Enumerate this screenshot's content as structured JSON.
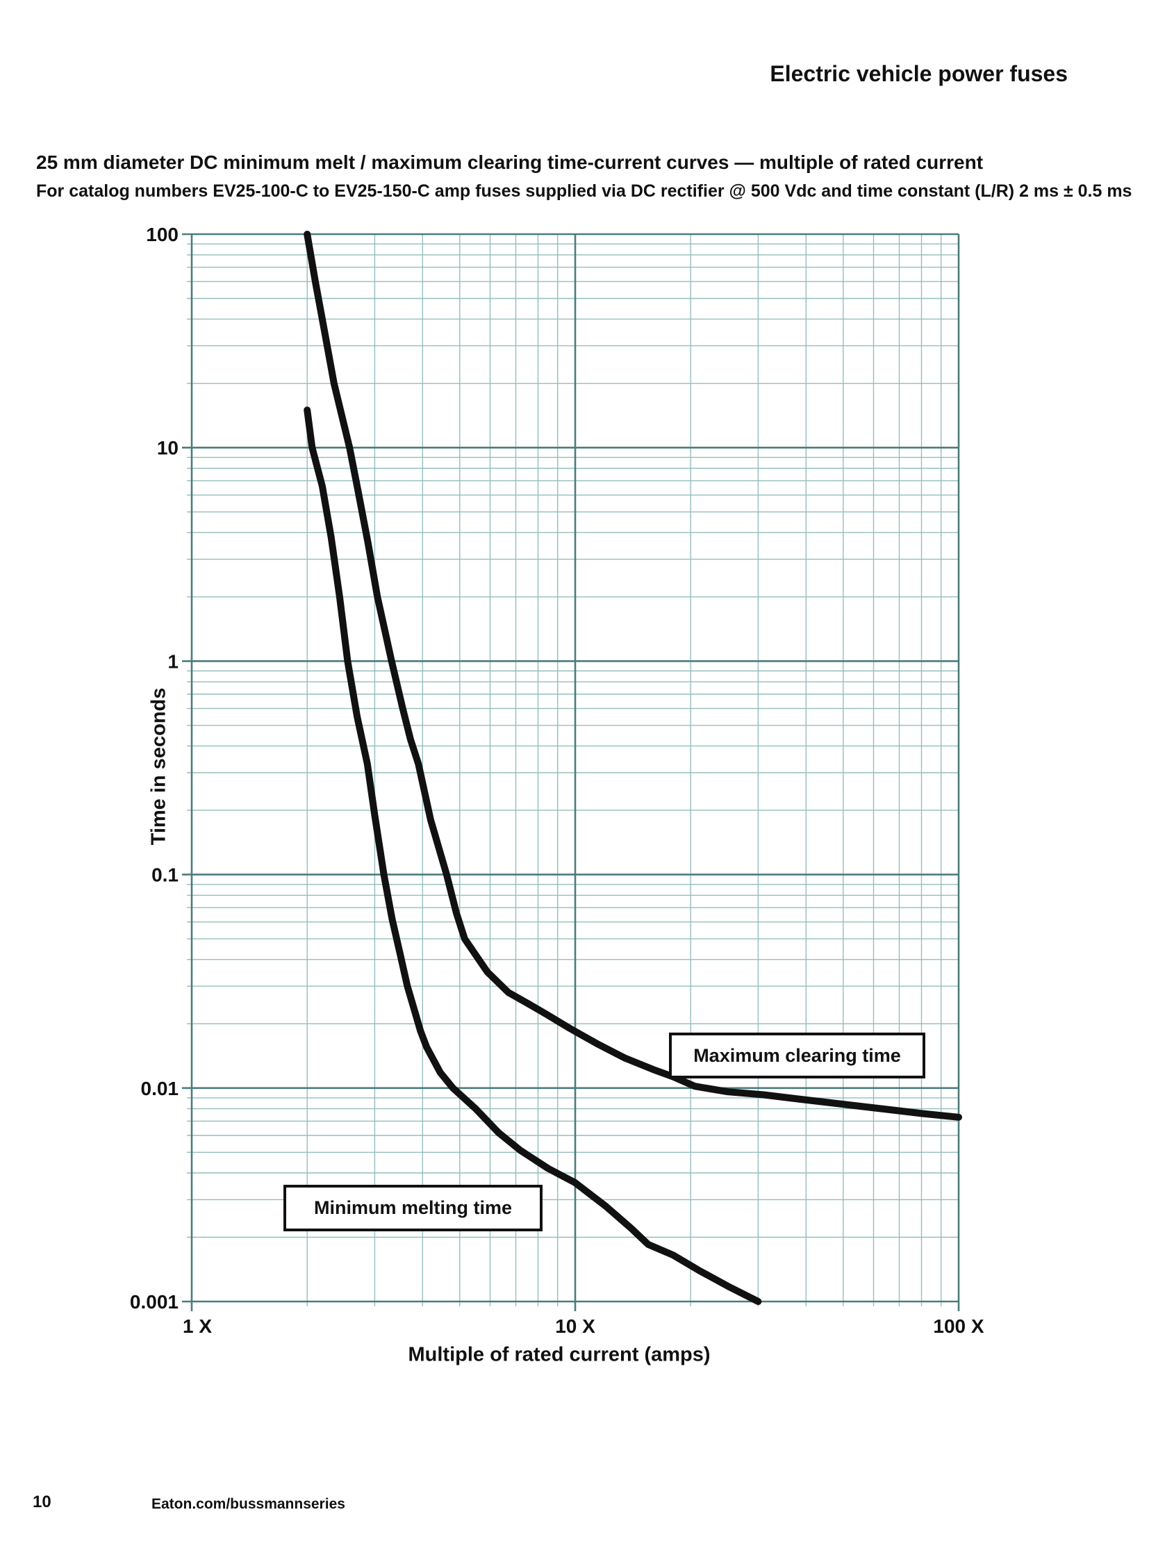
{
  "page": {
    "header": "Electric vehicle power fuses",
    "title": "25 mm diameter DC minimum melt / maximum clearing time-current curves — multiple of rated current",
    "subtitle": "For catalog numbers EV25-100-C to EV25-150-C amp fuses supplied via DC rectifier @ 500 Vdc and time constant (L/R) 2 ms ± 0.5 ms",
    "footer": {
      "page_number": "10",
      "url": "Eaton.com/bussmannseries"
    }
  },
  "chart_data": {
    "type": "line",
    "title": "",
    "xlabel": "Multiple of rated current (amps)",
    "ylabel": "Time in seconds",
    "x_scale": "log",
    "y_scale": "log",
    "xlim": [
      1,
      100
    ],
    "ylim": [
      0.001,
      100
    ],
    "grid": true,
    "x_unit": "multiple of rated current",
    "y_unit": "seconds",
    "x_ticks": [
      {
        "value": 1,
        "label": "1 X"
      },
      {
        "value": 10,
        "label": "10 X"
      },
      {
        "value": 100,
        "label": "100 X"
      }
    ],
    "y_ticks": [
      {
        "value": 100,
        "label": "100"
      },
      {
        "value": 10,
        "label": "10"
      },
      {
        "value": 1,
        "label": "1"
      },
      {
        "value": 0.1,
        "label": "0.1"
      },
      {
        "value": 0.01,
        "label": "0.01"
      },
      {
        "value": 0.001,
        "label": "0.001"
      }
    ],
    "colors": {
      "curve": "#111111",
      "grid_major": "#4c7b7b",
      "grid_minor": "#94bdbd",
      "text": "#111111",
      "callout_bg": "#ffffff"
    },
    "series": [
      {
        "name": "Minimum melting time",
        "points": [
          [
            2.0,
            15
          ],
          [
            2.06,
            10
          ],
          [
            2.19,
            6.6
          ],
          [
            2.31,
            3.8
          ],
          [
            2.43,
            2.0
          ],
          [
            2.55,
            1.0
          ],
          [
            2.7,
            0.55
          ],
          [
            2.87,
            0.33
          ],
          [
            3.0,
            0.19
          ],
          [
            3.17,
            0.1
          ],
          [
            3.33,
            0.062
          ],
          [
            3.5,
            0.042
          ],
          [
            3.65,
            0.03
          ],
          [
            3.8,
            0.0235
          ],
          [
            3.95,
            0.0185
          ],
          [
            4.1,
            0.0155
          ],
          [
            4.45,
            0.0118
          ],
          [
            4.8,
            0.01
          ],
          [
            5.5,
            0.008
          ],
          [
            6.3,
            0.0062
          ],
          [
            7.2,
            0.0051
          ],
          [
            8.5,
            0.0042
          ],
          [
            10.0,
            0.0036
          ],
          [
            12.0,
            0.0028
          ],
          [
            14.0,
            0.0022
          ],
          [
            15.5,
            0.00185
          ],
          [
            18.0,
            0.00165
          ],
          [
            21.0,
            0.0014
          ],
          [
            25.0,
            0.00118
          ],
          [
            30.0,
            0.001
          ]
        ]
      },
      {
        "name": "Maximum clearing time",
        "points": [
          [
            2.0,
            100
          ],
          [
            2.1,
            60
          ],
          [
            2.22,
            35
          ],
          [
            2.35,
            20
          ],
          [
            2.58,
            10
          ],
          [
            2.7,
            6.6
          ],
          [
            2.88,
            3.6
          ],
          [
            3.05,
            2.0
          ],
          [
            3.32,
            1.0
          ],
          [
            3.55,
            0.6
          ],
          [
            3.72,
            0.43
          ],
          [
            3.9,
            0.33
          ],
          [
            4.2,
            0.18
          ],
          [
            4.62,
            0.1
          ],
          [
            4.9,
            0.066
          ],
          [
            5.15,
            0.05
          ],
          [
            5.9,
            0.035
          ],
          [
            6.7,
            0.028
          ],
          [
            7.5,
            0.025
          ],
          [
            8.4,
            0.0222
          ],
          [
            9.7,
            0.019
          ],
          [
            11.5,
            0.016
          ],
          [
            13.5,
            0.0138
          ],
          [
            16.0,
            0.0122
          ],
          [
            18.0,
            0.0113
          ],
          [
            20.5,
            0.0102
          ],
          [
            25.0,
            0.0096
          ],
          [
            31.0,
            0.0093
          ],
          [
            40.0,
            0.0088
          ],
          [
            50.0,
            0.0084
          ],
          [
            63.0,
            0.008
          ],
          [
            80.0,
            0.0076
          ],
          [
            100.0,
            0.0073
          ]
        ]
      }
    ],
    "annotations": [
      {
        "text": "Maximum clearing time",
        "style": "boxed-callout"
      },
      {
        "text": "Minimum melting time",
        "style": "boxed-callout"
      }
    ]
  }
}
